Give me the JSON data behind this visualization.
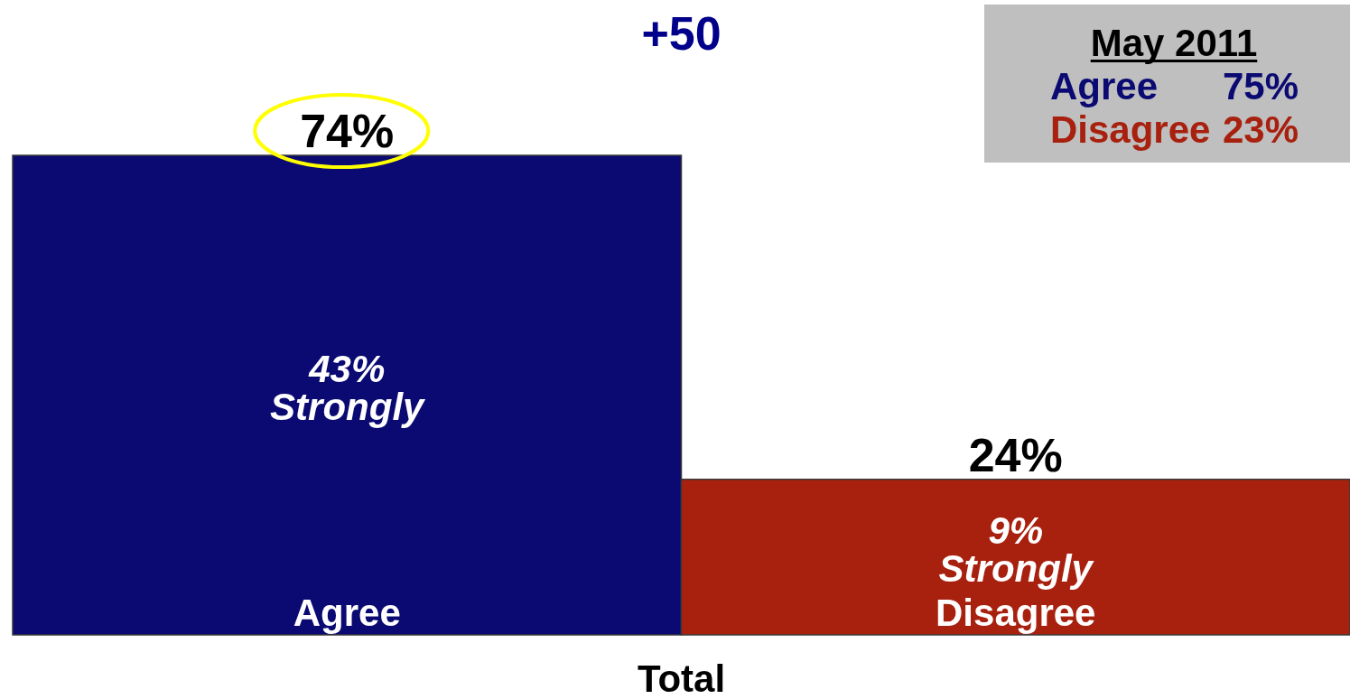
{
  "chart_data": {
    "type": "bar",
    "title": "+50",
    "xlabel": "Total",
    "categories": [
      "Agree",
      "Disagree"
    ],
    "values": [
      74,
      24
    ],
    "colors": [
      "#0a0a72",
      "#a8200e"
    ],
    "value_labels": [
      "74%",
      "24%"
    ],
    "annotations": [
      "43%\nStrongly",
      "9%\nStrongly",
      "May 2011",
      "Agree 75%",
      "Disagree 23%"
    ]
  }
}
